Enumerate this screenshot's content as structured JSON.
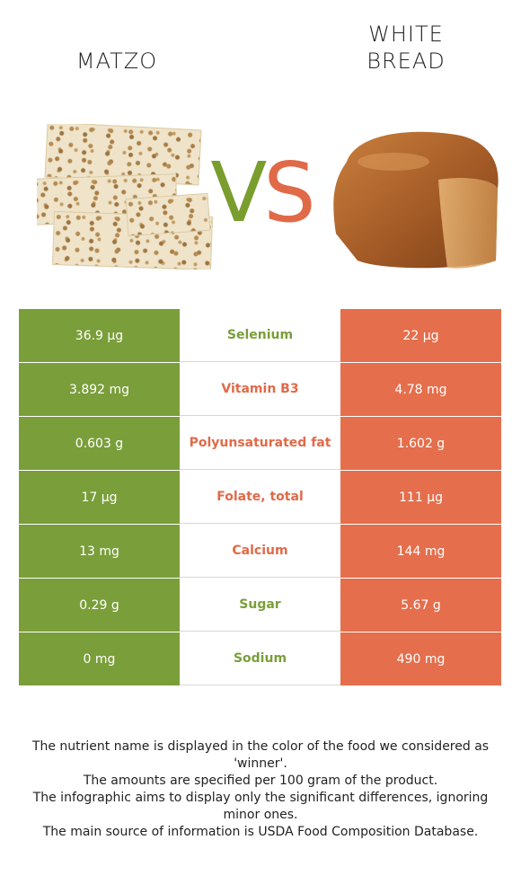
{
  "left_food": {
    "name": "MATZO"
  },
  "right_food": {
    "name": "WHITE\nBREAD"
  },
  "vs": {
    "v": "V",
    "s": "S"
  },
  "colors": {
    "left": "#7a9e3a",
    "right": "#e56e4c"
  },
  "rows": [
    {
      "left": "36.9 µg",
      "nutrient": "Selenium",
      "right": "22 µg",
      "winner": "left"
    },
    {
      "left": "3.892 mg",
      "nutrient": "Vitamin B3",
      "right": "4.78 mg",
      "winner": "right"
    },
    {
      "left": "0.603 g",
      "nutrient": "Polyunsaturated fat",
      "right": "1.602 g",
      "winner": "right"
    },
    {
      "left": "17 µg",
      "nutrient": "Folate, total",
      "right": "111 µg",
      "winner": "right"
    },
    {
      "left": "13 mg",
      "nutrient": "Calcium",
      "right": "144 mg",
      "winner": "right"
    },
    {
      "left": "0.29 g",
      "nutrient": "Sugar",
      "right": "5.67 g",
      "winner": "left"
    },
    {
      "left": "0 mg",
      "nutrient": "Sodium",
      "right": "490 mg",
      "winner": "left"
    }
  ],
  "footnotes": [
    "The nutrient name is displayed in the color of the food we considered as 'winner'.",
    "The amounts are specified per 100 gram of the product.",
    "The infographic aims to display only the significant differences, ignoring minor ones.",
    "The main source of information is USDA Food Composition Database."
  ]
}
